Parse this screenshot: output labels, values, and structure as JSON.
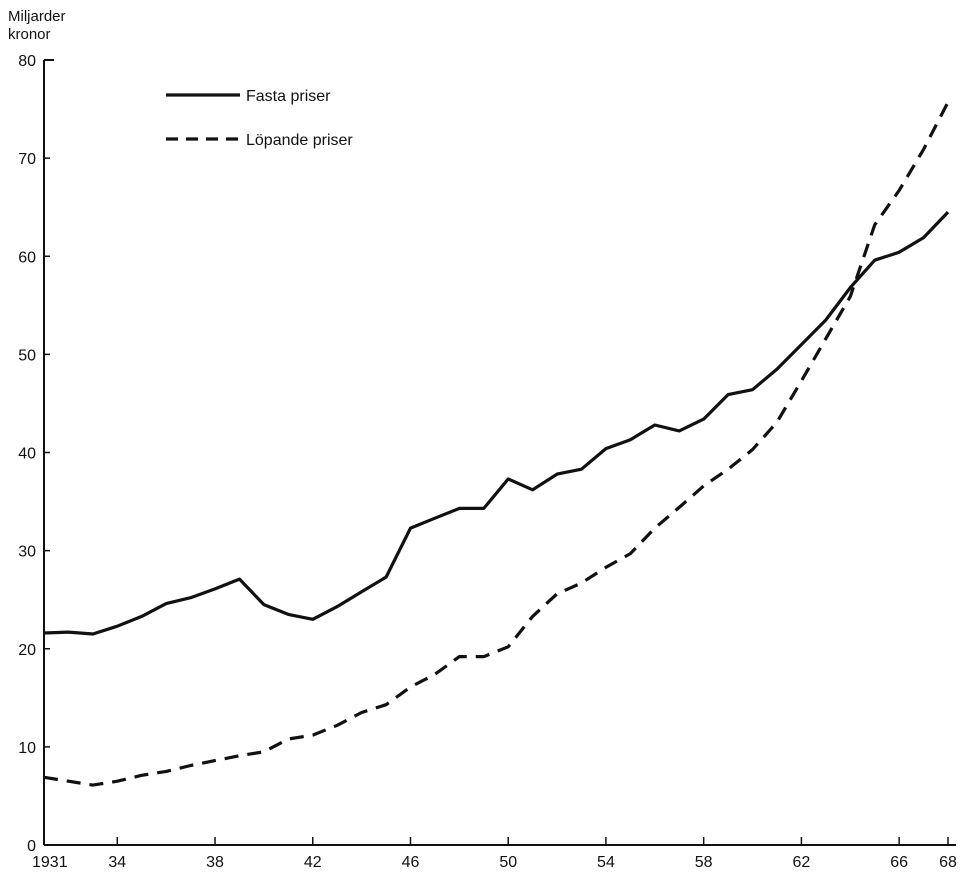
{
  "chart_data": {
    "type": "line",
    "title": "",
    "ylabel_lines": [
      "Miljarder",
      "kronor"
    ],
    "xlabel": "",
    "ylim": [
      0,
      80
    ],
    "xlim": [
      1931,
      1968
    ],
    "y_ticks": [
      0,
      10,
      20,
      30,
      40,
      50,
      60,
      70,
      80
    ],
    "x_ticks": [
      {
        "value": 1931,
        "label": "1931"
      },
      {
        "value": 1934,
        "label": "34"
      },
      {
        "value": 1938,
        "label": "38"
      },
      {
        "value": 1942,
        "label": "42"
      },
      {
        "value": 1946,
        "label": "46"
      },
      {
        "value": 1950,
        "label": "50"
      },
      {
        "value": 1954,
        "label": "54"
      },
      {
        "value": 1958,
        "label": "58"
      },
      {
        "value": 1962,
        "label": "62"
      },
      {
        "value": 1966,
        "label": "66"
      },
      {
        "value": 1968,
        "label": "68"
      }
    ],
    "grid": false,
    "legend_position": "top-left",
    "x": [
      1931,
      1932,
      1933,
      1934,
      1935,
      1936,
      1937,
      1938,
      1939,
      1940,
      1941,
      1942,
      1943,
      1944,
      1945,
      1946,
      1947,
      1948,
      1949,
      1950,
      1951,
      1952,
      1953,
      1954,
      1955,
      1956,
      1957,
      1958,
      1959,
      1960,
      1961,
      1962,
      1963,
      1964,
      1965,
      1966,
      1967,
      1968
    ],
    "series": [
      {
        "name": "Fasta priser",
        "style": "solid",
        "color": "#111111",
        "values": [
          21.6,
          21.7,
          21.5,
          22.3,
          23.3,
          24.6,
          25.2,
          26.1,
          27.1,
          24.5,
          23.5,
          23.0,
          24.3,
          25.8,
          27.3,
          32.3,
          33.3,
          34.3,
          34.3,
          37.3,
          36.2,
          37.8,
          38.3,
          40.4,
          41.3,
          42.8,
          42.2,
          43.4,
          45.9,
          46.4,
          48.5,
          51.0,
          53.5,
          56.8,
          59.6,
          60.4,
          61.9,
          64.5
        ]
      },
      {
        "name": "Löpande priser",
        "style": "dashed",
        "color": "#111111",
        "values": [
          6.9,
          6.5,
          6.1,
          6.5,
          7.1,
          7.5,
          8.1,
          8.6,
          9.1,
          9.5,
          10.8,
          11.2,
          12.2,
          13.5,
          14.3,
          16.1,
          17.4,
          19.2,
          19.2,
          20.2,
          23.3,
          25.6,
          26.7,
          28.3,
          29.7,
          32.3,
          34.4,
          36.6,
          38.3,
          40.3,
          43.1,
          47.3,
          51.6,
          55.9,
          63.2,
          66.7,
          70.9,
          75.7
        ]
      }
    ]
  }
}
